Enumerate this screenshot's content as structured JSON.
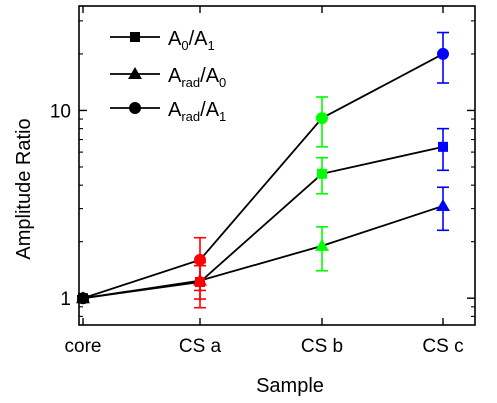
{
  "chart_data": {
    "type": "line",
    "xlabel": "Sample",
    "ylabel": "Amplitude Ratio",
    "y_scale": "log",
    "ylim": [
      0.72,
      36
    ],
    "categories": [
      "core",
      "CS a",
      "CS b",
      "CS c"
    ],
    "y_ticks": [
      {
        "value": 1,
        "label": "1"
      },
      {
        "value": 10,
        "label": "10"
      }
    ],
    "legend_position": "top-left",
    "point_colors": [
      "#000000",
      "#ff0000",
      "#00ff00",
      "#0000ff"
    ],
    "series": [
      {
        "legend": {
          "main": "A",
          "sub1": "0",
          "mid": "/A",
          "sub2": "1"
        },
        "marker": "square",
        "values": [
          1.0,
          1.22,
          4.6,
          6.4
        ],
        "errors": [
          0.03,
          0.33,
          1.0,
          1.6
        ]
      },
      {
        "legend": {
          "main": "A",
          "sub1": "rad",
          "mid": "/A",
          "sub2": "0"
        },
        "marker": "triangle",
        "values": [
          1.0,
          1.24,
          1.9,
          3.1
        ],
        "errors": [
          0.03,
          0.25,
          0.5,
          0.8
        ]
      },
      {
        "legend": {
          "main": "A",
          "sub1": "rad",
          "mid": "/A",
          "sub2": "1"
        },
        "marker": "circle",
        "values": [
          1.0,
          1.6,
          9.1,
          20.0
        ],
        "errors": [
          0.03,
          0.5,
          2.7,
          6.0
        ]
      }
    ]
  }
}
